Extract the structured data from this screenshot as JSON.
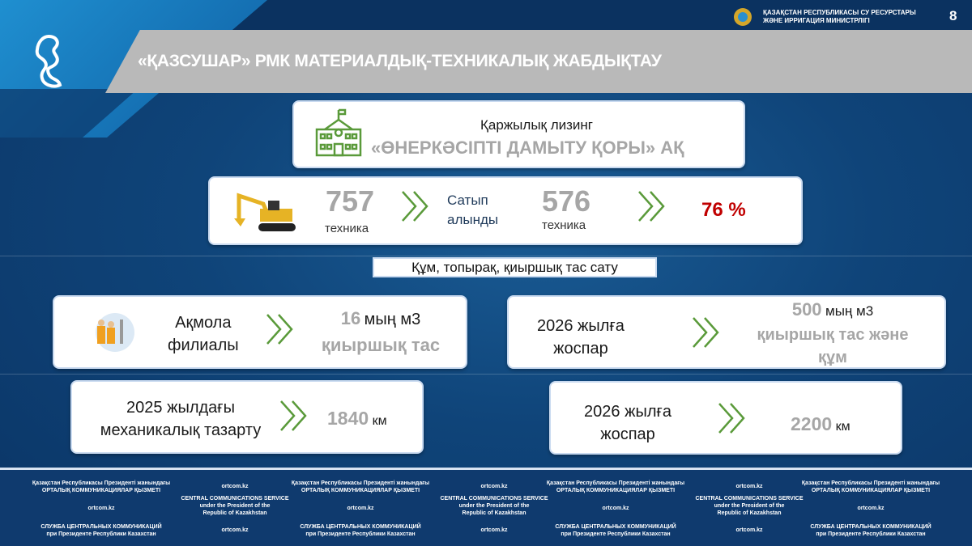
{
  "header": {
    "title": "«ҚАЗСУШАР» РМК МАТЕРИАЛДЫҚ-ТЕХНИКАЛЫҚ ЖАБДЫҚТАУ",
    "ministry_line1": "ҚАЗАҚСТАН РЕСПУБЛИКАСЫ СУ РЕСУРСТАРЫ",
    "ministry_line2": "ЖӘНЕ ИРРИГАЦИЯ МИНИСТРЛІГІ",
    "page_number": "8"
  },
  "leasing": {
    "label": "Қаржылық лизинг",
    "org": "«ӨНЕРКӘСІПТІ ДАМЫТУ ҚОРЫ» АҚ",
    "icon": "building-icon"
  },
  "equipment": {
    "total": "757",
    "total_unit": "техника",
    "purchased_label_1": "Сатып",
    "purchased_label_2": "алынды",
    "purchased": "576",
    "purchased_unit": "техника",
    "percent": "76 %",
    "percent_color": "#c00000",
    "icon": "excavator-icon"
  },
  "section_label": "Құм, топырақ, қиыршық тас сату",
  "akmola": {
    "label_1": "Ақмола",
    "label_2": "филиалы",
    "value": "16",
    "unit": "мың м3",
    "desc": "қиыршық тас"
  },
  "plan_gravel": {
    "label_1": "2026 жылға",
    "label_2": "жоспар",
    "value": "500",
    "unit": "мың м3",
    "desc_1": "қиыршық тас және",
    "desc_2": "құм"
  },
  "cleaning": {
    "label_1": "2025 жылдағы",
    "label_2": "механикалық тазарту",
    "value": "1840",
    "unit": "км"
  },
  "plan_cleaning": {
    "label_1": "2026 жылға",
    "label_2": "жоспар",
    "value": "2200",
    "unit": "км"
  },
  "colors": {
    "accent_green": "#5a9a3a",
    "background": "#0f4479",
    "value_gray": "#a6a6a6"
  },
  "footer": {
    "kz_1": "Қазақстан Республикасы Президенті жанындағы",
    "kz_2": "ОРТАЛЫҚ КОММУНИКАЦИЯЛАР ҚЫЗМЕТІ",
    "en_1": "CENTRAL COMMUNICATIONS SERVICE",
    "en_2": "under the President of the",
    "en_3": "Republic of Kazakhstan",
    "ru_1": "СЛУЖБА ЦЕНТРАЛЬНЫХ КОММУНИКАЦИЙ",
    "ru_2": "при Президенте Республики Казахстан",
    "site": "ortcom.kz"
  }
}
